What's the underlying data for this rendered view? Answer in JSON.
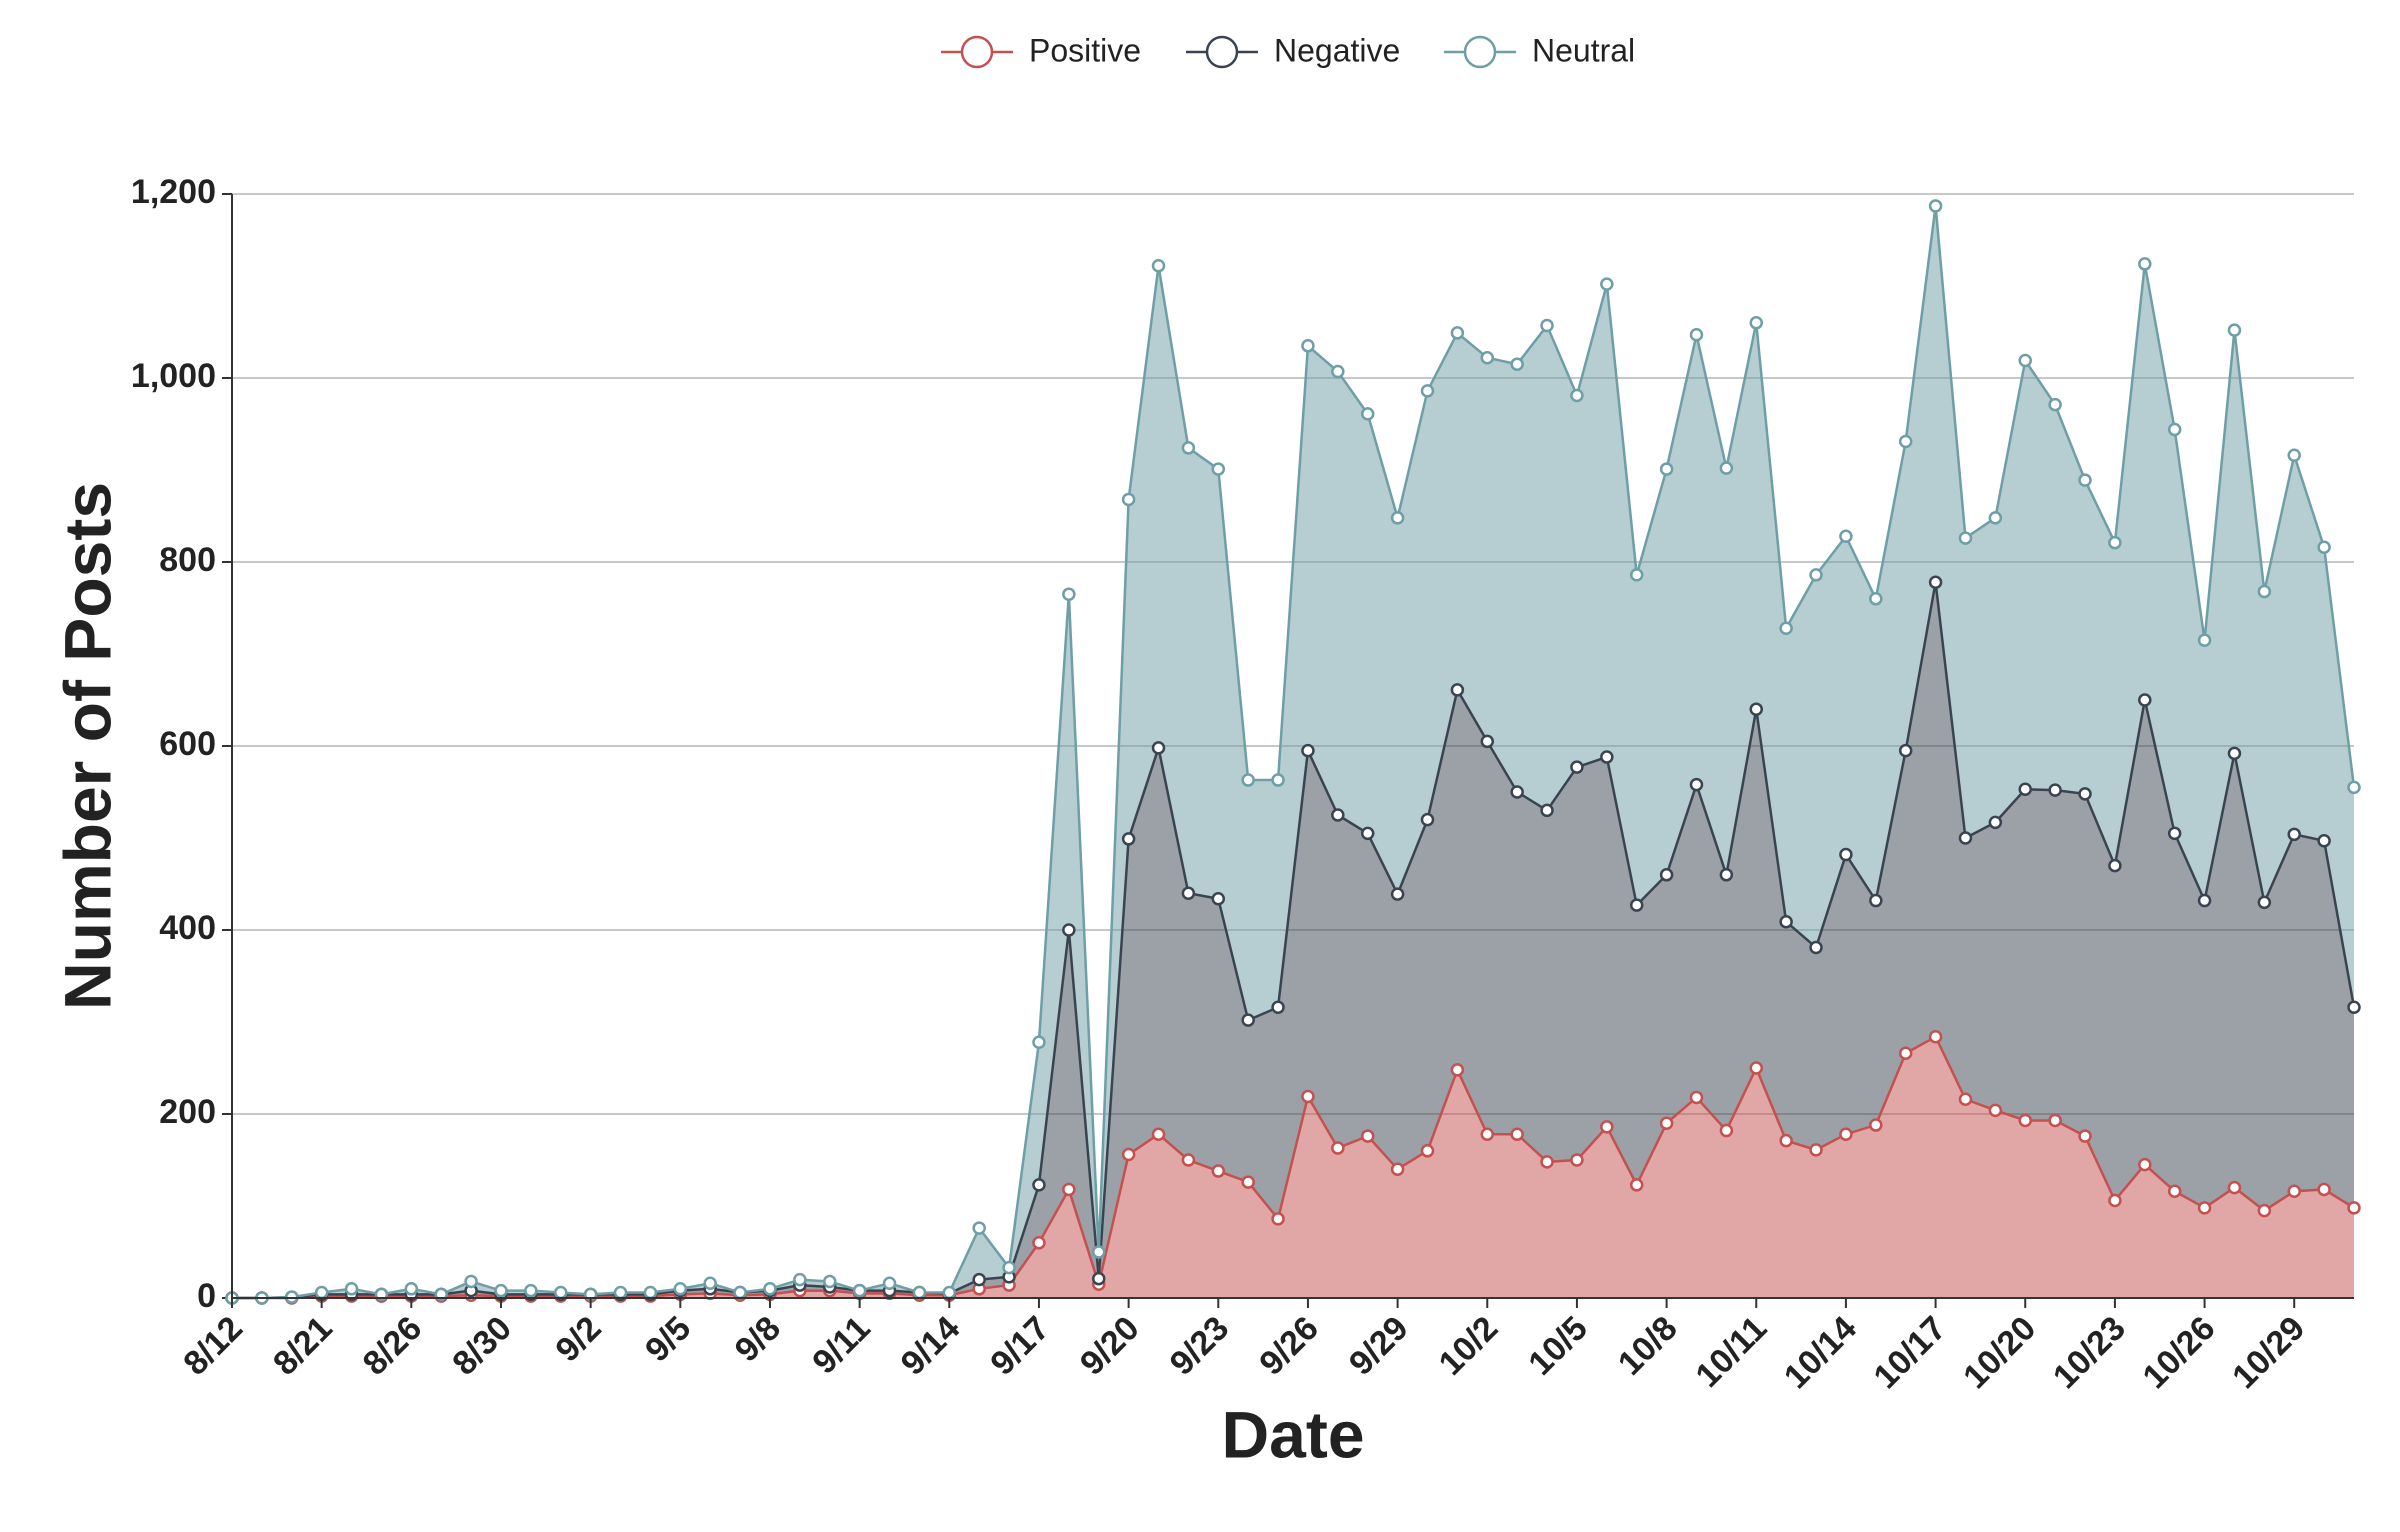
{
  "chart_data": {
    "type": "stacked-area",
    "x_label": "Date",
    "y_label": "Number of Posts",
    "categories": [
      "8/12",
      null,
      null,
      "8/21",
      null,
      null,
      "8/26",
      null,
      null,
      "8/30",
      null,
      null,
      "9/2",
      null,
      null,
      "9/5",
      null,
      null,
      "9/8",
      null,
      null,
      "9/11",
      null,
      null,
      "9/14",
      null,
      null,
      "9/17",
      null,
      null,
      "9/20",
      null,
      null,
      "9/23",
      null,
      null,
      "9/26",
      null,
      null,
      "9/29",
      null,
      null,
      "10/2",
      null,
      null,
      "10/5",
      null,
      null,
      "10/8",
      null,
      null,
      "10/11",
      null,
      null,
      "10/14",
      null,
      null,
      "10/17",
      null,
      null,
      "10/20",
      null,
      null,
      "10/23",
      null,
      null,
      "10/26",
      null,
      null,
      "10/29",
      null,
      null
    ],
    "series": [
      {
        "name": "Positive",
        "color": "#c4504f",
        "values": [
          0,
          0,
          0,
          2,
          2,
          2,
          2,
          2,
          3,
          2,
          2,
          2,
          2,
          2,
          2,
          4,
          5,
          3,
          4,
          8,
          8,
          5,
          5,
          3,
          3,
          10,
          14,
          60,
          118,
          15,
          156,
          178,
          150,
          138,
          126,
          86,
          219,
          163,
          176,
          140,
          160,
          248,
          178,
          178,
          148,
          150,
          186,
          123,
          190,
          218,
          182,
          250,
          171,
          161,
          178,
          188,
          266,
          284,
          216,
          204,
          193,
          193,
          176,
          106,
          145,
          116,
          98,
          120,
          95,
          116,
          118,
          98
        ]
      },
      {
        "name": "Negative",
        "color": "#3a4451",
        "values": [
          0,
          0,
          1,
          2,
          2,
          2,
          2,
          2,
          5,
          2,
          2,
          2,
          2,
          2,
          2,
          4,
          5,
          3,
          4,
          6,
          4,
          3,
          3,
          3,
          2,
          10,
          9,
          63,
          282,
          6,
          343,
          420,
          290,
          296,
          176,
          230,
          376,
          362,
          329,
          299,
          360,
          413,
          427,
          372,
          382,
          427,
          402,
          304,
          270,
          340,
          278,
          390,
          238,
          220,
          304,
          244,
          329,
          494,
          284,
          313,
          360,
          359,
          372,
          364,
          505,
          389,
          334,
          472,
          335,
          388,
          379,
          218
        ]
      },
      {
        "name": "Neutral",
        "color": "#6e9ea6",
        "values": [
          0,
          0,
          0,
          2,
          6,
          0,
          6,
          0,
          10,
          4,
          4,
          2,
          0,
          2,
          2,
          2,
          6,
          0,
          2,
          6,
          6,
          0,
          8,
          0,
          1,
          56,
          10,
          155,
          365,
          29,
          369,
          524,
          484,
          467,
          261,
          247,
          440,
          482,
          456,
          409,
          466,
          388,
          417,
          465,
          527,
          404,
          514,
          359,
          441,
          489,
          442,
          420,
          319,
          405,
          346,
          328,
          336,
          409,
          326,
          331,
          466,
          419,
          341,
          351,
          474,
          439,
          283,
          460,
          338,
          412,
          319,
          239
        ]
      }
    ],
    "ylim": [
      0,
      1200
    ],
    "yticks": [
      0,
      200,
      400,
      600,
      800,
      {
        "value": 1000,
        "label": "1,000"
      },
      {
        "value": 1200,
        "label": "1,200"
      }
    ],
    "grid": true,
    "legend": "top"
  }
}
